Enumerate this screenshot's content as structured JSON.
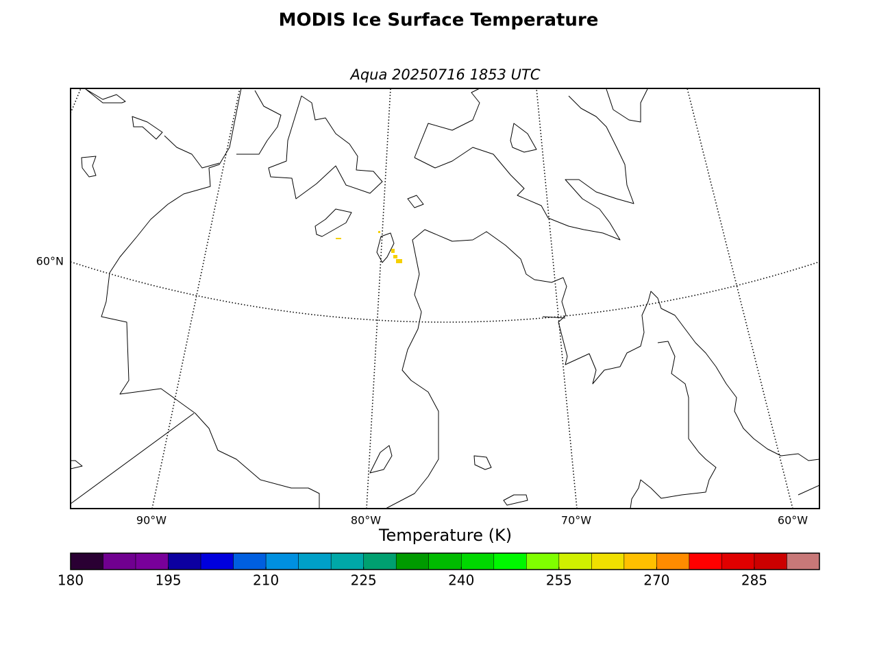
{
  "header": {
    "title": "MODIS Ice Surface Temperature",
    "subtitle": "Aqua 20250716 1853 UTC"
  },
  "map": {
    "lat_labels": [
      "60°N"
    ],
    "lon_labels": [
      "90°W",
      "80°W",
      "70°W",
      "60°W"
    ]
  },
  "colorbar": {
    "label": "Temperature (K)",
    "lim": [
      180,
      295
    ],
    "bounds": [
      180,
      185,
      190,
      195,
      200,
      205,
      210,
      215,
      220,
      225,
      230,
      235,
      240,
      245,
      250,
      255,
      260,
      265,
      270,
      275,
      280,
      285,
      290,
      295
    ],
    "colors": [
      "#2a0033",
      "#700090",
      "#78009a",
      "#0c00a0",
      "#0000dd",
      "#005fe0",
      "#0090e0",
      "#00a0c8",
      "#00a8a8",
      "#00a070",
      "#009a00",
      "#00bb00",
      "#00d800",
      "#00f800",
      "#80ff00",
      "#d0f000",
      "#f0e000",
      "#ffc000",
      "#ff8c00",
      "#ff0000",
      "#e00000",
      "#cc0000",
      "#c87878"
    ],
    "ticks": [
      180,
      195,
      210,
      225,
      240,
      255,
      270,
      285
    ]
  }
}
